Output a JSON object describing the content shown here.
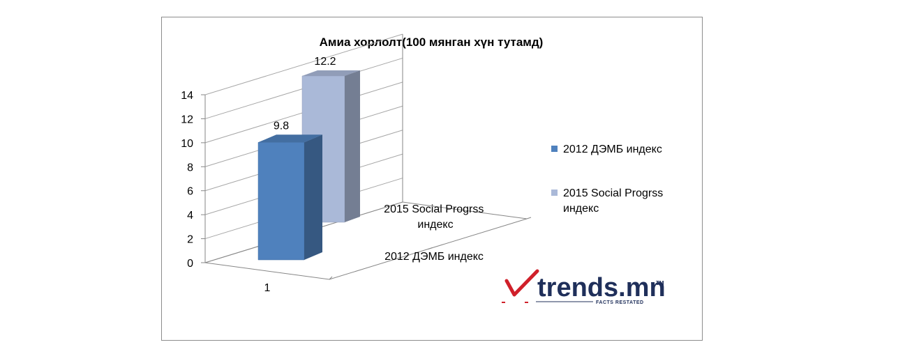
{
  "chart_data": {
    "type": "bar",
    "title": "Амиа хорлолт(100 мянган хүн тутамд)",
    "categories": [
      "1"
    ],
    "depth_categories": [
      "2012 ДЭМБ индекс",
      "2015 Social Progrss индекс"
    ],
    "series": [
      {
        "name": "2012 ДЭМБ индекс",
        "values": [
          9.8
        ],
        "color": "#4f81bd",
        "label": "9.8"
      },
      {
        "name": "2015 Social Progrss индекс",
        "values": [
          12.2
        ],
        "color": "#aab9d8",
        "label": "12.2"
      }
    ],
    "y_ticks": [
      "0",
      "2",
      "4",
      "6",
      "8",
      "10",
      "12",
      "14"
    ],
    "ylim": [
      0,
      14
    ],
    "grid": true,
    "legend_position": "right",
    "three_d": true
  },
  "logo": {
    "text": "trends.mn",
    "trademark": "TM",
    "tagline": "FACTS RESTATED",
    "check_color": "#d0202a",
    "text_color": "#1f2f5a"
  }
}
